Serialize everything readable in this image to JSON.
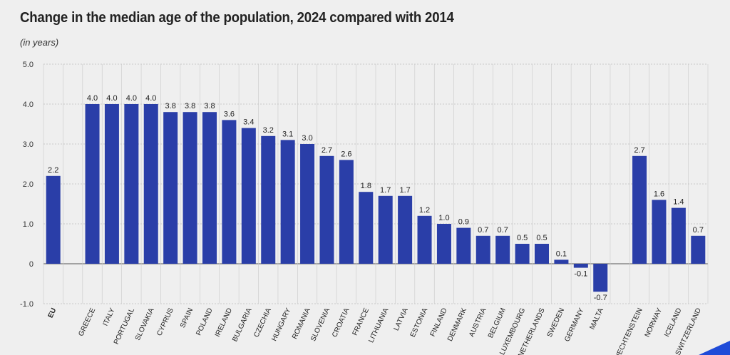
{
  "title": "Change in the median age of the population, 2024 compared with 2014",
  "subtitle": "(in years)",
  "colors": {
    "bar": "#2a3ea8",
    "grid": "#c9c9c9",
    "axis": "#555555",
    "background": "#efefef",
    "corner": "#1f4bd8"
  },
  "chart_data": {
    "type": "bar",
    "title": "Change in the median age of the population, 2024 compared with 2014",
    "subtitle": "(in years)",
    "xlabel": "",
    "ylabel": "",
    "ylim": [
      -1.0,
      5.0
    ],
    "yticks": [
      "5.0",
      "4.0",
      "3.0",
      "2.0",
      "1.0",
      "0",
      "-1.0"
    ],
    "grid": true,
    "categories": [
      "EU",
      "",
      "GREECE",
      "ITALY",
      "PORTUGAL",
      "SLOVAKIA",
      "CYPRUS",
      "SPAIN",
      "POLAND",
      "IRELAND",
      "BULGARIA",
      "CZECHIA",
      "HUNGARY",
      "ROMANIA",
      "SLOVENIA",
      "CROATIA",
      "FRANCE",
      "LITHUANIA",
      "LATVIA",
      "ESTONIA",
      "FINLAND",
      "DENMARK",
      "AUSTRIA",
      "BELGIUM",
      "LUXEMBOURG",
      "NETHERLANDS",
      "SWEDEN",
      "GERMANY",
      "MALTA",
      "",
      "LIECHTENSTEIN",
      "NORWAY",
      "ICELAND",
      "SWITZERLAND"
    ],
    "values": [
      2.2,
      null,
      4.0,
      4.0,
      4.0,
      4.0,
      3.8,
      3.8,
      3.8,
      3.6,
      3.4,
      3.2,
      3.1,
      3.0,
      2.7,
      2.6,
      1.8,
      1.7,
      1.7,
      1.2,
      1.0,
      0.9,
      0.7,
      0.7,
      0.5,
      0.5,
      0.1,
      -0.1,
      -0.7,
      null,
      2.7,
      1.6,
      1.4,
      0.7
    ],
    "labels": [
      "2.2",
      "",
      "4.0",
      "4.0",
      "4.0",
      "4.0",
      "3.8",
      "3.8",
      "3.8",
      "3.6",
      "3.4",
      "3.2",
      "3.1",
      "3.0",
      "2.7",
      "2.6",
      "1.8",
      "1.7",
      "1.7",
      "1.2",
      "1.0",
      "0.9",
      "0.7",
      "0.7",
      "0.5",
      "0.5",
      "0.1",
      "-0.1",
      "-0.7",
      "",
      "2.7",
      "1.6",
      "1.4",
      "0.7"
    ],
    "bold_categories": [
      "EU"
    ]
  }
}
